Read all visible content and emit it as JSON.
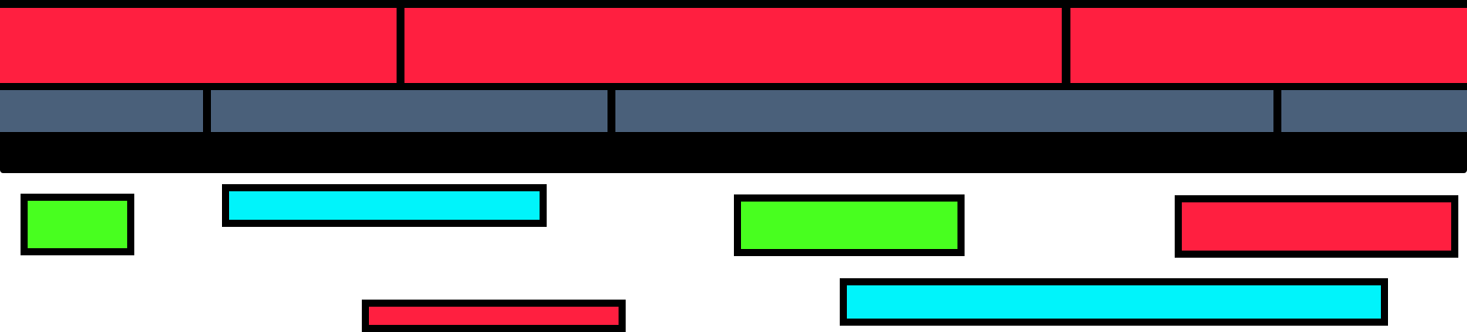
{
  "colors": {
    "red": "#ff1f40",
    "slate": "#4a607a",
    "green": "#48ff1f",
    "cyan": "#00f4fb",
    "black": "#000000",
    "white": "#ffffff"
  },
  "rows": [
    {
      "name": "top-red-band",
      "segments": 3,
      "color": "red"
    },
    {
      "name": "slate-band",
      "segments": 4,
      "color": "slate"
    },
    {
      "name": "black-band",
      "segments": 1,
      "color": "black"
    }
  ],
  "boxes": [
    {
      "name": "green-box-small",
      "color": "green"
    },
    {
      "name": "cyan-box-top-left",
      "color": "cyan"
    },
    {
      "name": "green-box-center",
      "color": "green"
    },
    {
      "name": "red-box-right",
      "color": "red"
    },
    {
      "name": "red-bar-bottom",
      "color": "red"
    },
    {
      "name": "cyan-bar-bottom",
      "color": "cyan"
    }
  ]
}
